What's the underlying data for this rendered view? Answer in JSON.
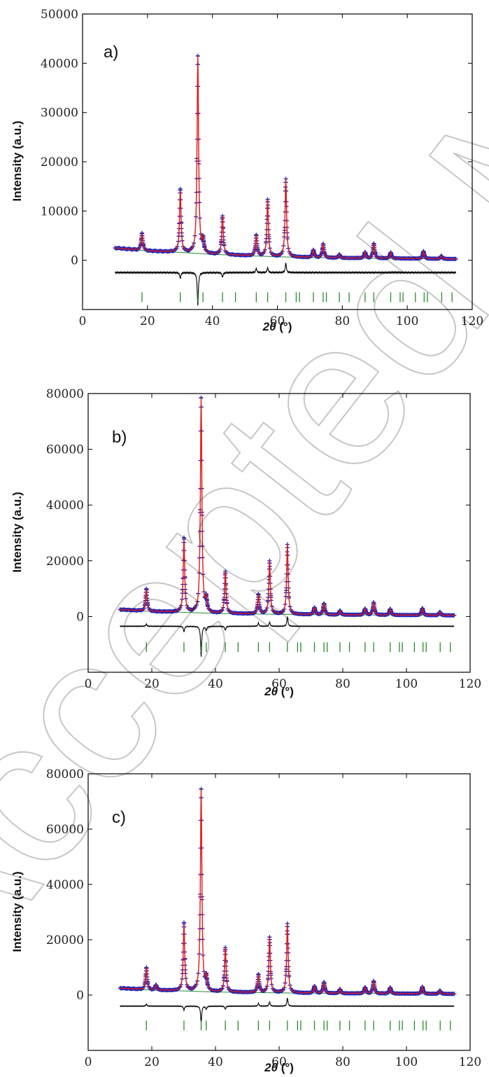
{
  "watermark": "Accepted Manuscript",
  "colors": {
    "observed": "#1f1fb4",
    "calculated": "#e01818",
    "background": "#2a8a2a",
    "difference": "#000000",
    "bragg": "#2a8a2a"
  },
  "chart_data": [
    {
      "type": "line",
      "panel_label": "a)",
      "xlabel_prefix": "2",
      "xlabel_symbol": "θ",
      "xlabel_unit": " (°)",
      "ylabel": "Intensity (a.u.)",
      "xlim": [
        0,
        120
      ],
      "ylim": [
        -10000,
        50000
      ],
      "xticks": [
        0,
        20,
        40,
        60,
        80,
        100,
        120
      ],
      "yticks": [
        0,
        10000,
        20000,
        30000,
        40000,
        50000
      ],
      "baseline": [
        [
          10,
          2500
        ],
        [
          20,
          1900
        ],
        [
          30,
          1600
        ],
        [
          40,
          1200
        ],
        [
          60,
          700
        ],
        [
          80,
          450
        ],
        [
          100,
          350
        ],
        [
          115,
          250
        ]
      ],
      "peaks": [
        [
          18.3,
          3500
        ],
        [
          30.1,
          12500
        ],
        [
          35.5,
          40000
        ],
        [
          37.1,
          2500
        ],
        [
          43.1,
          7800
        ],
        [
          53.5,
          4200
        ],
        [
          57.0,
          11500
        ],
        [
          62.6,
          15800
        ],
        [
          71.1,
          1500
        ],
        [
          74.1,
          2800
        ],
        [
          79.1,
          700
        ],
        [
          87.0,
          1200
        ],
        [
          89.7,
          3000
        ],
        [
          94.9,
          1200
        ],
        [
          105.0,
          1500
        ],
        [
          110.5,
          600
        ]
      ],
      "diff_offset": -2500,
      "diff_spikes": [
        [
          30.1,
          -1200
        ],
        [
          35.5,
          -6800
        ],
        [
          43.1,
          -1000
        ],
        [
          53.5,
          900
        ],
        [
          57.0,
          1000
        ],
        [
          62.6,
          2000
        ]
      ],
      "bragg_y": -7500,
      "bragg_positions": [
        18.3,
        30.1,
        35.5,
        37.1,
        43.1,
        47.1,
        53.5,
        57.0,
        62.6,
        65.8,
        66.8,
        71.1,
        74.1,
        75.1,
        79.1,
        82.1,
        87.0,
        89.7,
        94.9,
        97.8,
        98.7,
        102.5,
        105.2,
        106.2,
        110.6,
        113.8
      ]
    },
    {
      "type": "line",
      "panel_label": "b)",
      "xlabel_prefix": "2",
      "xlabel_symbol": "θ",
      "xlabel_unit": " (°)",
      "ylabel": "Intensity (a.u.)",
      "xlim": [
        0,
        120
      ],
      "ylim": [
        -20000,
        80000
      ],
      "xticks": [
        0,
        20,
        40,
        60,
        80,
        100,
        120
      ],
      "yticks": [
        0,
        20000,
        40000,
        60000,
        80000
      ],
      "baseline": [
        [
          10,
          2500
        ],
        [
          20,
          1800
        ],
        [
          30,
          1500
        ],
        [
          40,
          1100
        ],
        [
          60,
          800
        ],
        [
          80,
          600
        ],
        [
          100,
          500
        ],
        [
          115,
          400
        ]
      ],
      "peaks": [
        [
          18.3,
          8000
        ],
        [
          30.1,
          26000
        ],
        [
          35.5,
          77000
        ],
        [
          37.1,
          4500
        ],
        [
          43.1,
          15000
        ],
        [
          53.5,
          7000
        ],
        [
          57.0,
          19000
        ],
        [
          62.6,
          25000
        ],
        [
          71.1,
          2500
        ],
        [
          74.1,
          4000
        ],
        [
          79.1,
          1500
        ],
        [
          87.0,
          2200
        ],
        [
          89.7,
          4500
        ],
        [
          94.9,
          2200
        ],
        [
          105.0,
          2500
        ],
        [
          110.5,
          1200
        ]
      ],
      "diff_offset": -3500,
      "diff_spikes": [
        [
          18.3,
          800
        ],
        [
          30.1,
          -2000
        ],
        [
          35.5,
          -11000
        ],
        [
          37.1,
          -1500
        ],
        [
          43.1,
          -1500
        ],
        [
          53.5,
          1200
        ],
        [
          57.0,
          1500
        ],
        [
          62.6,
          3500
        ]
      ],
      "bragg_y": -11000,
      "bragg_positions": [
        18.3,
        30.1,
        35.5,
        37.1,
        43.1,
        47.1,
        53.5,
        57.0,
        62.6,
        65.8,
        66.8,
        71.1,
        74.1,
        75.1,
        79.1,
        82.1,
        87.0,
        89.7,
        94.9,
        97.8,
        98.7,
        102.5,
        105.2,
        106.2,
        110.6,
        113.8
      ]
    },
    {
      "type": "line",
      "panel_label": "c)",
      "xlabel_prefix": "2",
      "xlabel_symbol": "θ",
      "xlabel_unit": " (°)",
      "ylabel": "Intensity (a.u.)",
      "xlim": [
        0,
        120
      ],
      "ylim": [
        -20000,
        80000
      ],
      "xticks": [
        0,
        20,
        40,
        60,
        80,
        100,
        120
      ],
      "yticks": [
        0,
        20000,
        40000,
        60000,
        80000
      ],
      "baseline": [
        [
          10,
          2500
        ],
        [
          20,
          1800
        ],
        [
          30,
          1500
        ],
        [
          40,
          1100
        ],
        [
          60,
          800
        ],
        [
          80,
          600
        ],
        [
          100,
          500
        ],
        [
          115,
          400
        ]
      ],
      "peaks": [
        [
          18.3,
          8000
        ],
        [
          21.3,
          1800
        ],
        [
          30.1,
          24000
        ],
        [
          35.5,
          73000
        ],
        [
          37.1,
          4500
        ],
        [
          43.1,
          16000
        ],
        [
          53.5,
          6500
        ],
        [
          57.0,
          20000
        ],
        [
          62.6,
          25000
        ],
        [
          71.1,
          2500
        ],
        [
          74.1,
          4000
        ],
        [
          79.1,
          1500
        ],
        [
          87.0,
          2200
        ],
        [
          89.7,
          4500
        ],
        [
          94.9,
          2200
        ],
        [
          105.0,
          2500
        ],
        [
          110.5,
          1200
        ]
      ],
      "diff_offset": -4000,
      "diff_spikes": [
        [
          18.3,
          700
        ],
        [
          30.1,
          -1500
        ],
        [
          35.5,
          -6000
        ],
        [
          37.1,
          -1200
        ],
        [
          43.1,
          -1200
        ],
        [
          53.5,
          1000
        ],
        [
          57.0,
          1500
        ],
        [
          62.6,
          3000
        ]
      ],
      "bragg_y": -11000,
      "bragg_positions": [
        18.3,
        30.1,
        35.5,
        37.1,
        43.1,
        47.1,
        53.5,
        57.0,
        62.6,
        65.8,
        66.8,
        71.1,
        74.1,
        75.1,
        79.1,
        82.1,
        87.0,
        89.7,
        94.9,
        97.8,
        98.7,
        102.5,
        105.2,
        106.2,
        110.6,
        113.8
      ]
    }
  ]
}
